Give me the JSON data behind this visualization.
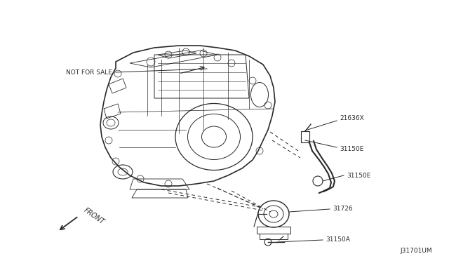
{
  "background_color": "#ffffff",
  "figsize": [
    6.4,
    3.72
  ],
  "dpi": 100,
  "labels": {
    "not_for_sale": "NOT FOR SALE",
    "part_21636x": "21636X",
    "part_31150e_1": "31150E",
    "part_31150e_2": "31150E",
    "part_31726": "31726",
    "part_31150a": "31150A",
    "front": "FRONT",
    "diagram_id": "J31701UM"
  },
  "line_color": "#2a2a2a",
  "text_color": "#2a2a2a",
  "font_size_labels": 6.5,
  "font_size_diagram_id": 6.5,
  "font_size_front": 7
}
